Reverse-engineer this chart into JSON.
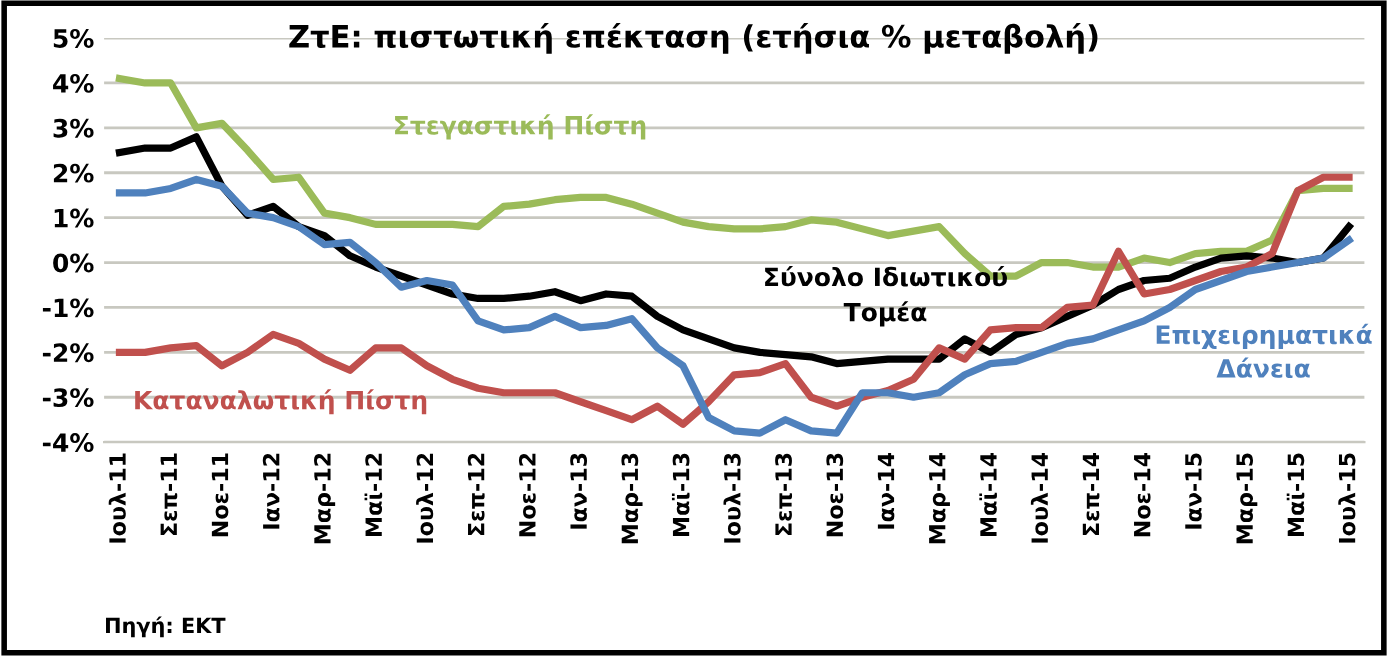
{
  "chart_data": {
    "type": "line",
    "title": "ΖτΕ: πιστωτική επέκταση (ετήσια % μεταβολή)",
    "categories": [
      "Ιουλ-11",
      null,
      "Σεπ-11",
      null,
      "Νοε-11",
      null,
      "Ιαν-12",
      null,
      "Μαρ-12",
      null,
      "Μαϊ-12",
      null,
      "Ιουλ-12",
      null,
      "Σεπ-12",
      null,
      "Νοε-12",
      null,
      "Ιαν-13",
      null,
      "Μαρ-13",
      null,
      "Μαϊ-13",
      null,
      "Ιουλ-13",
      null,
      "Σεπ-13",
      null,
      "Νοε-13",
      null,
      "Ιαν-14",
      null,
      "Μαρ-14",
      null,
      "Μαϊ-14",
      null,
      "Ιουλ-14",
      null,
      "Σεπ-14",
      null,
      "Νοε-14",
      null,
      "Ιαν-15",
      null,
      "Μαρ-15",
      null,
      "Μαϊ-15",
      null,
      "Ιουλ-15"
    ],
    "series": [
      {
        "name": "Στεγαστική Πίστη",
        "color": "#9bbb59",
        "values": [
          4.1,
          4.0,
          4.0,
          3.0,
          3.1,
          2.5,
          1.85,
          1.9,
          1.1,
          1.0,
          0.85,
          0.85,
          0.85,
          0.85,
          0.8,
          1.25,
          1.3,
          1.4,
          1.45,
          1.45,
          1.3,
          1.1,
          0.9,
          0.8,
          0.75,
          0.75,
          0.8,
          0.95,
          0.9,
          0.75,
          0.6,
          0.7,
          0.8,
          0.2,
          -0.3,
          -0.3,
          0.0,
          0.0,
          -0.1,
          -0.1,
          0.1,
          0.0,
          0.2,
          0.25,
          0.25,
          0.5,
          1.6,
          1.65,
          1.65
        ]
      },
      {
        "name": "Σύνολο Ιδιωτικού\nΤομέα",
        "color": "#000000",
        "values": [
          2.45,
          2.55,
          2.55,
          2.8,
          1.7,
          1.05,
          1.25,
          0.8,
          0.6,
          0.15,
          -0.1,
          -0.3,
          -0.5,
          -0.7,
          -0.8,
          -0.8,
          -0.75,
          -0.65,
          -0.85,
          -0.7,
          -0.75,
          -1.2,
          -1.5,
          -1.7,
          -1.9,
          -2.0,
          -2.05,
          -2.1,
          -2.25,
          -2.2,
          -2.15,
          -2.15,
          -2.15,
          -1.7,
          -2.0,
          -1.6,
          -1.45,
          -1.2,
          -0.95,
          -0.6,
          -0.4,
          -0.35,
          -0.1,
          0.1,
          0.15,
          0.1,
          0.0,
          0.1,
          0.8
        ]
      },
      {
        "name": "Καταναλωτική Πίστη",
        "color": "#c0504d",
        "values": [
          -2.0,
          -2.0,
          -1.9,
          -1.85,
          -2.3,
          -2.0,
          -1.6,
          -1.8,
          -2.15,
          -2.4,
          -1.9,
          -1.9,
          -2.3,
          -2.6,
          -2.8,
          -2.9,
          -2.9,
          -2.9,
          -3.1,
          -3.3,
          -3.5,
          -3.2,
          -3.6,
          -3.1,
          -2.5,
          -2.45,
          -2.25,
          -3.0,
          -3.2,
          -3.0,
          -2.85,
          -2.6,
          -1.9,
          -2.15,
          -1.5,
          -1.45,
          -1.45,
          -1.0,
          -0.95,
          0.25,
          -0.7,
          -0.6,
          -0.4,
          -0.2,
          -0.1,
          0.2,
          1.6,
          1.9,
          1.9
        ]
      },
      {
        "name": "Επιχειρηματικά\nΔάνεια",
        "color": "#4f81bd",
        "values": [
          1.55,
          1.55,
          1.65,
          1.85,
          1.7,
          1.1,
          1.0,
          0.8,
          0.4,
          0.45,
          0.0,
          -0.55,
          -0.4,
          -0.5,
          -1.3,
          -1.5,
          -1.45,
          -1.2,
          -1.45,
          -1.4,
          -1.25,
          -1.9,
          -2.3,
          -3.45,
          -3.75,
          -3.8,
          -3.5,
          -3.75,
          -3.8,
          -2.9,
          -2.9,
          -3.0,
          -2.9,
          -2.5,
          -2.25,
          -2.2,
          -2.0,
          -1.8,
          -1.7,
          -1.5,
          -1.3,
          -1.0,
          -0.6,
          -0.4,
          -0.2,
          -0.1,
          0.0,
          0.1,
          0.5
        ]
      }
    ],
    "ylim": [
      -4,
      5
    ],
    "yticks": [
      {
        "value": -4,
        "label": "-4%"
      },
      {
        "value": -3,
        "label": "-3%"
      },
      {
        "value": -2,
        "label": "-2%"
      },
      {
        "value": -1,
        "label": "-1%"
      },
      {
        "value": 0,
        "label": "0%"
      },
      {
        "value": 1,
        "label": "1%"
      },
      {
        "value": 2,
        "label": "2%"
      },
      {
        "value": 3,
        "label": "3%"
      },
      {
        "value": 4,
        "label": "4%"
      },
      {
        "value": 5,
        "label": "5%"
      }
    ],
    "grid": "y",
    "annotations": [
      "Πηγή: ΕΚΤ"
    ]
  }
}
